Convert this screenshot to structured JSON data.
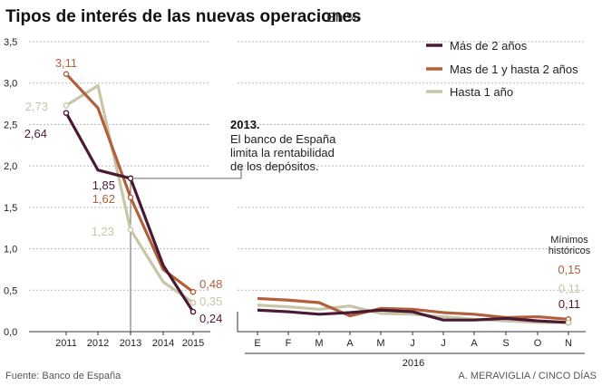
{
  "chart_data": {
    "type": "line",
    "title": "Tipos de interés de las nuevas operaciones",
    "unit": "En %",
    "ylim": [
      0,
      3.5
    ],
    "yticks": [
      "0,0",
      "0,5",
      "1,0",
      "1,5",
      "2,0",
      "2,5",
      "3,0",
      "3,5"
    ],
    "panels": [
      {
        "name": "annual",
        "categories": [
          "2011",
          "2012",
          "2013",
          "2014",
          "2015"
        ]
      },
      {
        "name": "monthly",
        "categories": [
          "E",
          "F",
          "M",
          "A",
          "M",
          "J",
          "J",
          "A",
          "S",
          "O",
          "N"
        ],
        "xlabel": "2016"
      }
    ],
    "series": [
      {
        "name": "Más de 2 años",
        "color": "#4a1a35",
        "annual": [
          2.64,
          1.95,
          1.85,
          0.8,
          0.24
        ],
        "monthly": [
          0.26,
          0.24,
          0.21,
          0.23,
          0.26,
          0.24,
          0.14,
          0.14,
          0.16,
          0.13,
          0.11
        ]
      },
      {
        "name": "Mas de 1 y hasta 2 años",
        "color": "#b0603a",
        "annual": [
          3.11,
          2.7,
          1.62,
          0.75,
          0.48
        ],
        "monthly": [
          0.4,
          0.38,
          0.35,
          0.19,
          0.28,
          0.27,
          0.23,
          0.21,
          0.17,
          0.18,
          0.15
        ]
      },
      {
        "name": "Hasta 1 año",
        "color": "#c9c6a8",
        "annual": [
          2.73,
          2.97,
          1.23,
          0.6,
          0.35
        ],
        "monthly": [
          0.32,
          0.3,
          0.27,
          0.31,
          0.22,
          0.21,
          0.18,
          0.15,
          0.13,
          0.11,
          0.11
        ]
      }
    ],
    "labels": {
      "Más de 2 años": [
        "2,64",
        "1,85",
        "0,24"
      ],
      "Mas de 1 y hasta 2 años": [
        "3,11",
        "1,62",
        "0,48"
      ],
      "Hasta 1 año": [
        "2,73",
        "1,23",
        "0,35"
      ]
    },
    "annotation": {
      "year": "2013.",
      "lines": [
        "El banco de España",
        "limita la rentabilidad",
        "de los depósitos."
      ]
    },
    "minimos": {
      "title_lines": [
        "Mínimos",
        "históricos"
      ],
      "values": [
        "0,15",
        "0,11",
        "0,11"
      ]
    },
    "source": "Fuente: Banco de España",
    "credit": "A. MERAVIGLIA / CINCO DÍAS"
  }
}
